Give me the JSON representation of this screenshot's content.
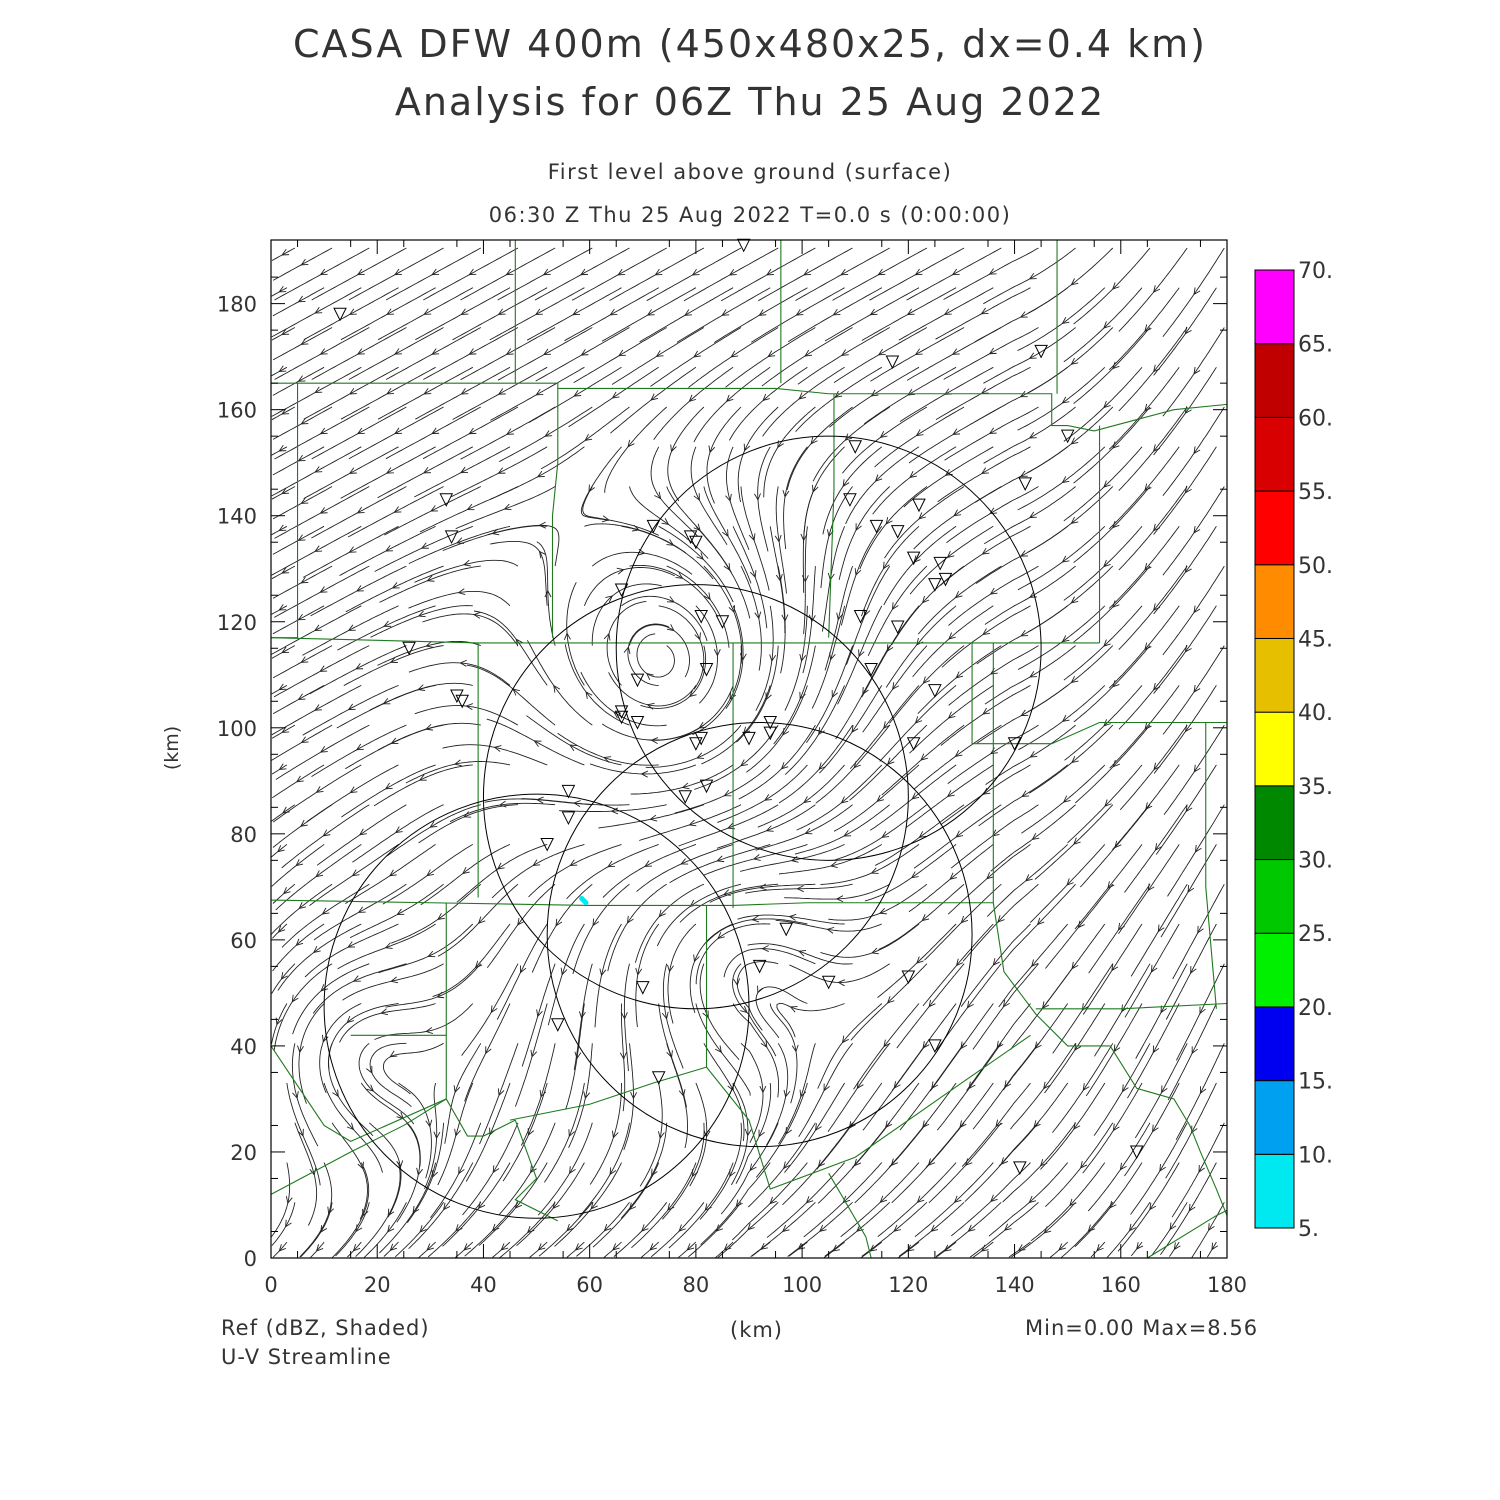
{
  "title": {
    "line1": "CASA DFW 400m (450x480x25, dx=0.4 km)",
    "line2": "Analysis for 06Z Thu 25 Aug 2022",
    "line3": "First level above ground (surface)",
    "line4": "06:30 Z Thu 25 Aug 2022   T=0.0 s (0:00:00)"
  },
  "axes": {
    "x_label": "(km)",
    "y_label": "(km)",
    "x_range": [
      0,
      180
    ],
    "y_range": [
      0,
      192
    ],
    "x_ticks": [
      0,
      20,
      40,
      60,
      80,
      100,
      120,
      140,
      160,
      180
    ],
    "y_ticks": [
      0,
      20,
      40,
      60,
      80,
      100,
      120,
      140,
      160,
      180
    ]
  },
  "colorbar": {
    "levels": [
      "5.",
      "10.",
      "15.",
      "20.",
      "25.",
      "30.",
      "35.",
      "40.",
      "45.",
      "50.",
      "55.",
      "60.",
      "65.",
      "70."
    ],
    "colors": [
      "#00e8f0",
      "#00a0f0",
      "#0000f0",
      "#00f000",
      "#00c800",
      "#008800",
      "#ffff00",
      "#e6c000",
      "#ff8c00",
      "#ff0000",
      "#d80000",
      "#c00000",
      "#ff00ff"
    ]
  },
  "footer": {
    "left1": "Ref (dBZ, Shaded)",
    "left2": "U-V Streamline",
    "center": "(km)",
    "right": "Min=0.00 Max=8.56"
  },
  "map": {
    "radar_rings": [
      {
        "cx": 80,
        "cy": 87,
        "r": 40
      },
      {
        "cx": 105,
        "cy": 115,
        "r": 40
      },
      {
        "cx": 50,
        "cy": 47.5,
        "r": 40
      },
      {
        "cx": 92,
        "cy": 61,
        "r": 40
      }
    ],
    "stations": [
      [
        13,
        178
      ],
      [
        89,
        191
      ],
      [
        117,
        169
      ],
      [
        145,
        171
      ],
      [
        150,
        155
      ],
      [
        142,
        146
      ],
      [
        33,
        143
      ],
      [
        34,
        136
      ],
      [
        72,
        138
      ],
      [
        79,
        136
      ],
      [
        80,
        135
      ],
      [
        110,
        153
      ],
      [
        109,
        143
      ],
      [
        114,
        138
      ],
      [
        118,
        137
      ],
      [
        122,
        142
      ],
      [
        121,
        132
      ],
      [
        126,
        131
      ],
      [
        127,
        128
      ],
      [
        125,
        127
      ],
      [
        66,
        126
      ],
      [
        81,
        121
      ],
      [
        85,
        120
      ],
      [
        111,
        121
      ],
      [
        118,
        119
      ],
      [
        26,
        115
      ],
      [
        82,
        111
      ],
      [
        69,
        109
      ],
      [
        35,
        106
      ],
      [
        36,
        105
      ],
      [
        66,
        103
      ],
      [
        66,
        102
      ],
      [
        69,
        101
      ],
      [
        94,
        101
      ],
      [
        94,
        99
      ],
      [
        90,
        98
      ],
      [
        81,
        98
      ],
      [
        80,
        97
      ],
      [
        121,
        97
      ],
      [
        125,
        107
      ],
      [
        113,
        111
      ],
      [
        140,
        97
      ],
      [
        56,
        88
      ],
      [
        56,
        83
      ],
      [
        52,
        78
      ],
      [
        78,
        87
      ],
      [
        82,
        89
      ],
      [
        97,
        62
      ],
      [
        92,
        55
      ],
      [
        70,
        51
      ],
      [
        105,
        52
      ],
      [
        120,
        53
      ],
      [
        54,
        44
      ],
      [
        125,
        40
      ],
      [
        73,
        34
      ],
      [
        141,
        17
      ],
      [
        163,
        20
      ]
    ],
    "echo": [
      [
        58.5,
        67.8
      ],
      [
        59.3,
        67.0
      ]
    ],
    "county_lines": [
      [
        [
          0,
          165
        ],
        [
          46,
          165
        ],
        [
          46,
          172
        ],
        [
          46,
          192
        ]
      ],
      [
        [
          46,
          165
        ],
        [
          54,
          165
        ],
        [
          54,
          164
        ],
        [
          62,
          164
        ],
        [
          75,
          164
        ],
        [
          95,
          164
        ],
        [
          105,
          163
        ],
        [
          147,
          163
        ],
        [
          147,
          157
        ],
        [
          150,
          157
        ],
        [
          155,
          156
        ],
        [
          170,
          160
        ],
        [
          180,
          161
        ]
      ],
      [
        [
          96,
          192
        ],
        [
          96,
          180
        ],
        [
          96,
          165
        ]
      ],
      [
        [
          148,
          192
        ],
        [
          148,
          175
        ],
        [
          148,
          163
        ]
      ],
      [
        [
          5,
          165
        ],
        [
          5,
          161
        ],
        [
          5,
          117
        ],
        [
          0,
          117
        ]
      ],
      [
        [
          54,
          164
        ],
        [
          54,
          150
        ],
        [
          53,
          140
        ],
        [
          53,
          117
        ]
      ],
      [
        [
          106,
          163
        ],
        [
          106,
          145
        ],
        [
          105,
          117
        ]
      ],
      [
        [
          0,
          117
        ],
        [
          20,
          116.5
        ],
        [
          39,
          116
        ],
        [
          53,
          116
        ],
        [
          88,
          116
        ],
        [
          105,
          116
        ],
        [
          140,
          116
        ],
        [
          156,
          116
        ]
      ],
      [
        [
          156,
          157
        ],
        [
          156,
          135
        ],
        [
          156,
          116
        ]
      ],
      [
        [
          39,
          116
        ],
        [
          39,
          100
        ],
        [
          39,
          68
        ]
      ],
      [
        [
          87,
          116
        ],
        [
          87,
          90
        ],
        [
          87,
          66
        ]
      ],
      [
        [
          132,
          116
        ],
        [
          132,
          97
        ],
        [
          147,
          97
        ],
        [
          156,
          101
        ],
        [
          180,
          101
        ]
      ],
      [
        [
          0,
          67.5
        ],
        [
          30,
          67
        ],
        [
          60,
          66.5
        ],
        [
          87,
          66.5
        ],
        [
          101,
          67
        ],
        [
          126,
          67
        ],
        [
          136,
          67
        ]
      ],
      [
        [
          136,
          116
        ],
        [
          136,
          97
        ],
        [
          136,
          67
        ]
      ],
      [
        [
          33,
          67
        ],
        [
          33,
          42
        ],
        [
          33,
          30
        ],
        [
          37,
          23
        ],
        [
          40,
          23
        ],
        [
          46,
          26
        ]
      ],
      [
        [
          82,
          66.5
        ],
        [
          82,
          48
        ],
        [
          82,
          36
        ],
        [
          72,
          33
        ],
        [
          60,
          29
        ],
        [
          45,
          26
        ]
      ],
      [
        [
          15,
          42
        ],
        [
          33,
          42
        ]
      ],
      [
        [
          0,
          40
        ],
        [
          10,
          25
        ],
        [
          15,
          22
        ],
        [
          33,
          30
        ]
      ],
      [
        [
          0,
          12
        ],
        [
          15,
          20
        ],
        [
          25,
          25
        ],
        [
          33,
          30
        ]
      ],
      [
        [
          46,
          26
        ],
        [
          50,
          15
        ],
        [
          46,
          11
        ],
        [
          54,
          7
        ]
      ],
      [
        [
          82,
          36
        ],
        [
          90,
          26
        ],
        [
          94,
          13
        ],
        [
          110,
          19
        ],
        [
          130,
          33
        ],
        [
          143,
          42
        ]
      ],
      [
        [
          105,
          16
        ],
        [
          112,
          4
        ],
        [
          113,
          0
        ]
      ],
      [
        [
          136,
          67
        ],
        [
          138,
          54
        ],
        [
          144,
          46
        ],
        [
          150,
          40
        ],
        [
          158,
          40
        ],
        [
          163,
          32
        ],
        [
          170,
          30
        ],
        [
          173,
          25
        ],
        [
          175,
          20
        ],
        [
          178,
          13
        ],
        [
          180,
          8
        ]
      ],
      [
        [
          144,
          47
        ],
        [
          160,
          47
        ],
        [
          180,
          48
        ]
      ],
      [
        [
          176,
          101
        ],
        [
          176,
          70
        ],
        [
          178,
          47
        ]
      ],
      [
        [
          165,
          0
        ],
        [
          178,
          8
        ],
        [
          180,
          9
        ]
      ]
    ]
  }
}
